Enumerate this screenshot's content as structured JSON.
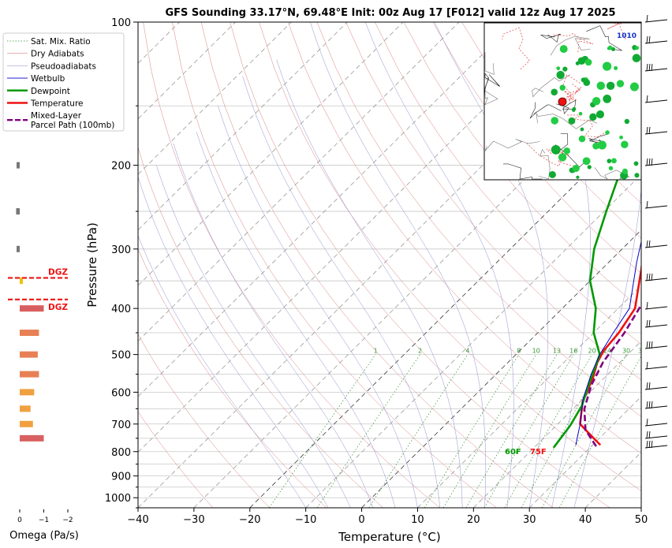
{
  "chart_data": {
    "type": "line",
    "title": "GFS Sounding 33.17°N, 69.48°E Init: 00z Aug 17 [F012] valid 12z Aug 17 2025",
    "xlabel": "Temperature (°C)",
    "ylabel": "Pressure (hPa)",
    "xlim": [
      -40,
      50
    ],
    "ylim": [
      1050,
      100
    ],
    "y_scale": "log",
    "x_ticks": [
      "−40",
      "−30",
      "−20",
      "−10",
      "0",
      "10",
      "20",
      "30",
      "40",
      "50"
    ],
    "x_tick_values": [
      -40,
      -30,
      -20,
      -10,
      0,
      10,
      20,
      30,
      40,
      50
    ],
    "y_ticks": [
      "100",
      "200",
      "300",
      "400",
      "500",
      "600",
      "700",
      "800",
      "900",
      "1000"
    ],
    "y_tick_values": [
      100,
      200,
      300,
      400,
      500,
      600,
      700,
      800,
      900,
      1000
    ],
    "grid": true,
    "legend_placement": "left",
    "legend": [
      {
        "label": "Sat. Mix. Ratio",
        "color": "#2e8b2e",
        "style": "dotted"
      },
      {
        "label": "Dry Adiabats",
        "color": "#cc6666",
        "style": "solid-thin"
      },
      {
        "label": "Pseudoadiabats",
        "color": "#8888cc",
        "style": "solid-thin"
      },
      {
        "label": "Wetbulb",
        "color": "#0000cc",
        "style": "solid"
      },
      {
        "label": "Dewpoint",
        "color": "#009900",
        "style": "solid-thick"
      },
      {
        "label": "Temperature",
        "color": "#ee1111",
        "style": "solid-thick"
      },
      {
        "label": "Mixed-Layer\nParcel Path (100mb)",
        "color": "#800080",
        "style": "dashed"
      }
    ],
    "series": [
      {
        "name": "Temperature",
        "color": "#ee1111",
        "points": [
          [
            31.4,
            775
          ],
          [
            28,
            740
          ],
          [
            24,
            700
          ],
          [
            20.5,
            630
          ],
          [
            18,
            560
          ],
          [
            16,
            520
          ],
          [
            15,
            490
          ],
          [
            14.5,
            450
          ],
          [
            13,
            400
          ],
          [
            7,
            330
          ],
          [
            -0.7,
            260
          ],
          [
            -8.4,
            195
          ],
          [
            -19.3,
            145
          ],
          [
            -23,
            100
          ]
        ]
      },
      {
        "name": "Dewpoint",
        "color": "#009900",
        "points": [
          [
            23.5,
            785
          ],
          [
            22.5,
            705
          ],
          [
            21,
            640
          ],
          [
            18.5,
            580
          ],
          [
            15,
            500
          ],
          [
            10,
            450
          ],
          [
            6,
            400
          ],
          [
            0,
            350
          ],
          [
            -5,
            300
          ],
          [
            -9.6,
            250
          ],
          [
            -15,
            200
          ],
          [
            -23,
            150
          ],
          [
            -29,
            100
          ]
        ]
      },
      {
        "name": "Wetbulb",
        "color": "#0000cc",
        "points": [
          [
            27,
            775
          ],
          [
            24,
            700
          ],
          [
            20,
            620
          ],
          [
            17,
            550
          ],
          [
            15,
            500
          ],
          [
            13.5,
            450
          ],
          [
            12,
            400
          ],
          [
            5,
            320
          ],
          [
            -1,
            260
          ],
          [
            -8.8,
            195
          ],
          [
            -20,
            145
          ],
          [
            -23.5,
            100
          ]
        ]
      },
      {
        "name": "Mixed-Layer Parcel Path (100mb)",
        "color": "#800080",
        "points": [
          [
            30.9,
            780
          ],
          [
            26,
            720
          ],
          [
            22,
            650
          ],
          [
            19,
            580
          ],
          [
            17,
            520
          ],
          [
            15.5,
            450
          ],
          [
            13,
            380
          ],
          [
            8.5,
            310
          ],
          [
            2,
            250
          ],
          [
            -8.3,
            195
          ],
          [
            -22,
            140
          ],
          [
            -32,
            100
          ]
        ]
      }
    ],
    "mixing_ratio_labels": [
      "1",
      "2",
      "4",
      "8",
      "10",
      "13",
      "16",
      "20",
      "24",
      "30",
      "36"
    ],
    "surface_annotations": [
      {
        "text": "60F",
        "color": "#009900"
      },
      {
        "text": "75F",
        "color": "#ee1111"
      }
    ],
    "omega": {
      "xlabel": "Omega (Pa/s)",
      "x_ticks": [
        "0",
        "−1",
        "−2"
      ],
      "dgz_label": "DGZ",
      "bars": [
        {
          "p": 200,
          "value": -0.12,
          "color": "#777777"
        },
        {
          "p": 250,
          "value": -0.15,
          "color": "#777777"
        },
        {
          "p": 300,
          "value": -0.05,
          "color": "#777777"
        },
        {
          "p": 350,
          "value": 0.02,
          "color": "#f2c200"
        },
        {
          "p": 400,
          "value": 1.0,
          "color": "#d96060"
        },
        {
          "p": 450,
          "value": 0.8,
          "color": "#e88055"
        },
        {
          "p": 500,
          "value": 0.75,
          "color": "#e88055"
        },
        {
          "p": 550,
          "value": 0.8,
          "color": "#e88055"
        },
        {
          "p": 600,
          "value": 0.6,
          "color": "#f0a040"
        },
        {
          "p": 650,
          "value": 0.45,
          "color": "#f0a040"
        },
        {
          "p": 700,
          "value": 0.55,
          "color": "#f0a040"
        },
        {
          "p": 750,
          "value": 1.0,
          "color": "#d96060"
        }
      ]
    },
    "inset_map": {
      "label": "1010"
    }
  }
}
